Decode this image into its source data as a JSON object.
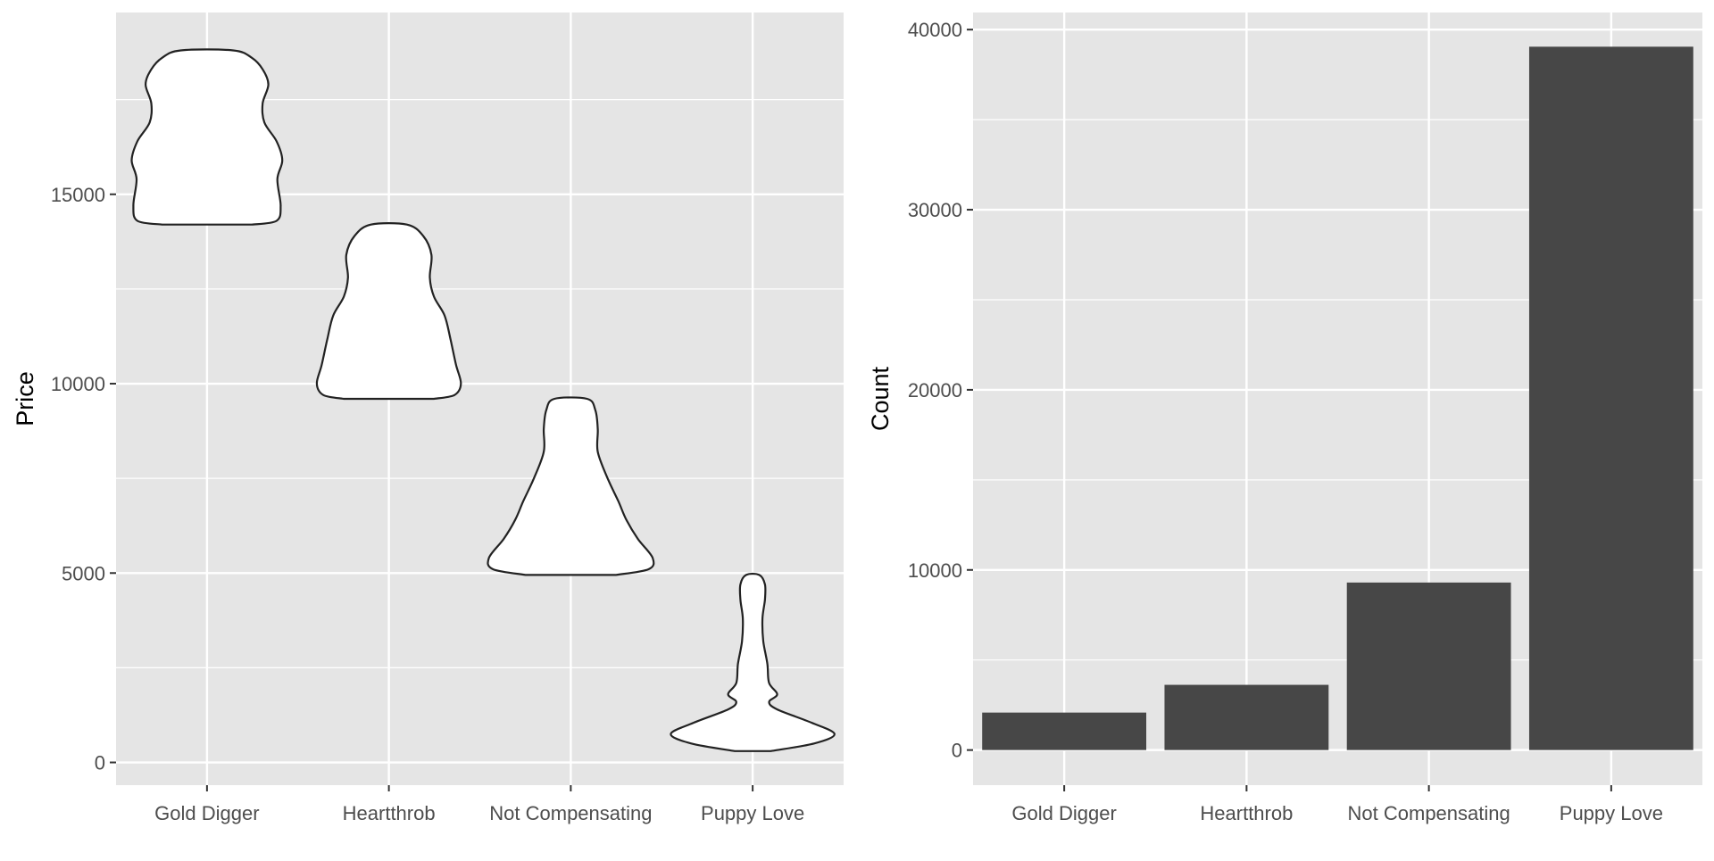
{
  "chart_data": [
    {
      "type": "violin",
      "categories": [
        "Gold Digger",
        "Heartthrob",
        "Not Compensating",
        "Puppy Love"
      ],
      "ylabel": "Price",
      "xlabel": "",
      "ylim": [
        -600,
        19800
      ],
      "yticks": [
        0,
        5000,
        10000,
        15000
      ],
      "grid": true,
      "series": [
        {
          "category": "Gold Digger",
          "min": 14200,
          "max": 18800,
          "profile": [
            [
              14200,
              0.55
            ],
            [
              14300,
              0.85
            ],
            [
              14700,
              0.9
            ],
            [
              15400,
              0.86
            ],
            [
              15900,
              0.92
            ],
            [
              16400,
              0.85
            ],
            [
              16900,
              0.7
            ],
            [
              17400,
              0.68
            ],
            [
              17900,
              0.75
            ],
            [
              18300,
              0.68
            ],
            [
              18600,
              0.55
            ],
            [
              18800,
              0.32
            ]
          ]
        },
        {
          "category": "Heartthrob",
          "min": 9600,
          "max": 14200,
          "profile": [
            [
              9600,
              0.55
            ],
            [
              9700,
              0.8
            ],
            [
              10000,
              0.88
            ],
            [
              10500,
              0.82
            ],
            [
              11200,
              0.75
            ],
            [
              11800,
              0.68
            ],
            [
              12300,
              0.55
            ],
            [
              12800,
              0.5
            ],
            [
              13400,
              0.52
            ],
            [
              13900,
              0.42
            ],
            [
              14200,
              0.22
            ]
          ]
        },
        {
          "category": "Not Compensating",
          "min": 4950,
          "max": 9600,
          "profile": [
            [
              4950,
              0.55
            ],
            [
              5100,
              0.95
            ],
            [
              5400,
              1.0
            ],
            [
              5900,
              0.82
            ],
            [
              6400,
              0.68
            ],
            [
              6900,
              0.58
            ],
            [
              7500,
              0.45
            ],
            [
              8200,
              0.33
            ],
            [
              8800,
              0.33
            ],
            [
              9300,
              0.3
            ],
            [
              9600,
              0.2
            ]
          ]
        },
        {
          "category": "Puppy Love",
          "min": 300,
          "max": 4950,
          "profile": [
            [
              300,
              0.22
            ],
            [
              500,
              0.75
            ],
            [
              750,
              1.0
            ],
            [
              1050,
              0.72
            ],
            [
              1400,
              0.3
            ],
            [
              1600,
              0.2
            ],
            [
              1800,
              0.3
            ],
            [
              2100,
              0.2
            ],
            [
              2600,
              0.18
            ],
            [
              3200,
              0.13
            ],
            [
              3800,
              0.12
            ],
            [
              4300,
              0.15
            ],
            [
              4700,
              0.15
            ],
            [
              4950,
              0.08
            ]
          ]
        }
      ]
    },
    {
      "type": "bar",
      "categories": [
        "Gold Digger",
        "Heartthrob",
        "Not Compensating",
        "Puppy Love"
      ],
      "values": [
        2080,
        3620,
        9300,
        39050
      ],
      "ylabel": "Count",
      "xlabel": "",
      "ylim": [
        -1950,
        40950
      ],
      "yticks": [
        0,
        10000,
        20000,
        30000,
        40000
      ],
      "grid": true,
      "bar_color": "#474747"
    }
  ],
  "colors": {
    "panel_bg": "#e5e5e5",
    "grid": "#ffffff",
    "violin_fill": "#ffffff",
    "violin_stroke": "#222222",
    "tick_label": "#4d4d4d",
    "tick_mark": "#333333"
  }
}
